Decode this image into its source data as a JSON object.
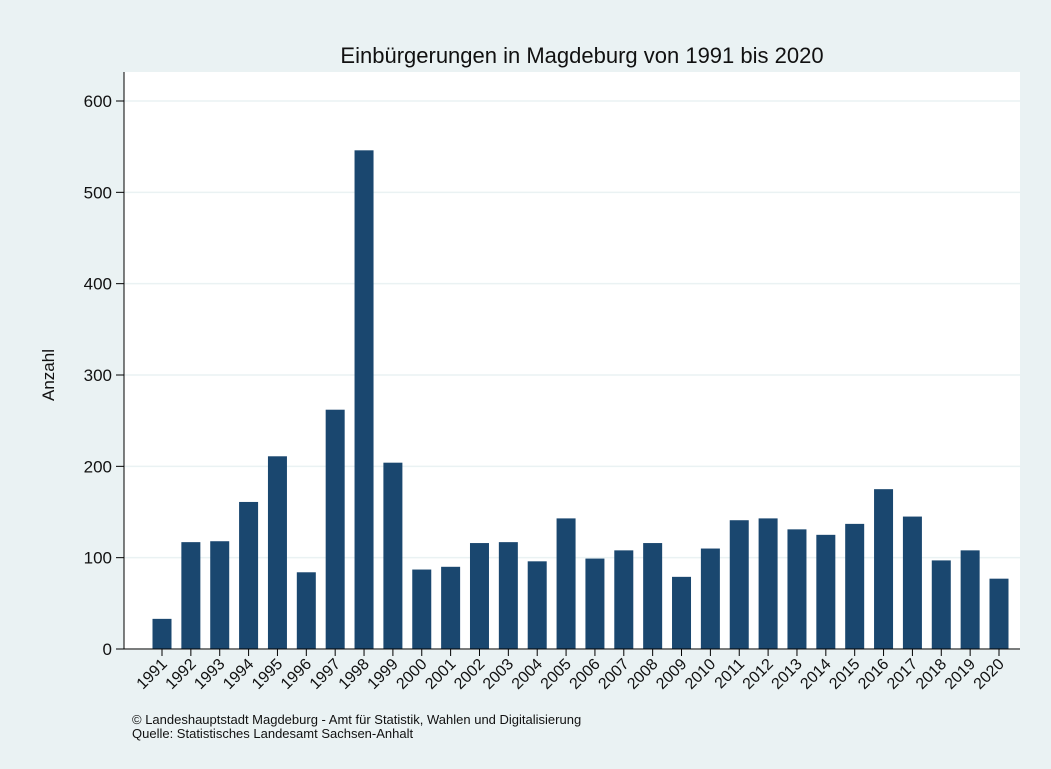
{
  "chart_data": {
    "type": "bar",
    "title": "Einbürgerungen in Magdeburg von 1991 bis 2020",
    "y_label": "Anzahl",
    "categories": [
      "1991",
      "1992",
      "1993",
      "1994",
      "1995",
      "1996",
      "1997",
      "1998",
      "1999",
      "2000",
      "2001",
      "2002",
      "2003",
      "2004",
      "2005",
      "2006",
      "2007",
      "2008",
      "2009",
      "2010",
      "2011",
      "2012",
      "2013",
      "2014",
      "2015",
      "2016",
      "2017",
      "2018",
      "2019",
      "2020"
    ],
    "values": [
      33,
      117,
      118,
      161,
      211,
      84,
      262,
      546,
      204,
      87,
      90,
      116,
      117,
      96,
      143,
      99,
      108,
      116,
      79,
      110,
      141,
      143,
      131,
      125,
      137,
      175,
      145,
      97,
      108,
      77
    ],
    "color": "#1a476f",
    "ylim": [
      0,
      600
    ],
    "yticks": [
      0,
      100,
      200,
      300,
      400,
      500,
      600
    ],
    "grid": true,
    "notes": [
      "©  Landeshauptstadt Magdeburg - Amt für Statistik, Wahlen und Digitalisierung",
      "Quelle: Statistisches Landesamt Sachsen-Anhalt"
    ]
  }
}
